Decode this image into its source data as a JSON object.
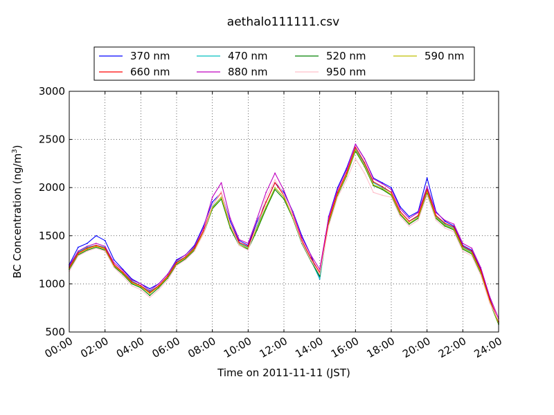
{
  "chart_data": {
    "type": "line",
    "title": "aethalo111111.csv",
    "xlabel": "Time on 2011-11-11 (JST)",
    "ylabel": "BC Concentration (ng/m",
    "ylabel_sup": "3",
    "ylabel_end": ")",
    "xlim": [
      "00:00",
      "24:00"
    ],
    "ylim": [
      500,
      3000
    ],
    "x_ticks": [
      "00:00",
      "02:00",
      "04:00",
      "06:00",
      "08:00",
      "10:00",
      "12:00",
      "14:00",
      "16:00",
      "18:00",
      "20:00",
      "22:00",
      "24:00"
    ],
    "y_ticks": [
      "500",
      "1000",
      "1500",
      "2000",
      "2500",
      "3000"
    ],
    "grid": true,
    "legend": "top (above plot), 4 columns",
    "x": [
      "00:00",
      "00:30",
      "01:00",
      "01:30",
      "02:00",
      "02:30",
      "03:00",
      "03:30",
      "04:00",
      "04:30",
      "05:00",
      "05:30",
      "06:00",
      "06:30",
      "07:00",
      "07:30",
      "08:00",
      "08:30",
      "09:00",
      "09:30",
      "10:00",
      "10:30",
      "11:00",
      "11:30",
      "12:00",
      "12:30",
      "13:00",
      "13:30",
      "14:00",
      "14:30",
      "15:00",
      "15:30",
      "16:00",
      "16:30",
      "17:00",
      "17:30",
      "18:00",
      "18:30",
      "19:00",
      "19:30",
      "20:00",
      "20:30",
      "21:00",
      "21:30",
      "22:00",
      "22:30",
      "23:00",
      "23:30",
      "24:00"
    ],
    "series": [
      {
        "name": "370 nm",
        "color": "#0000ff",
        "values": [
          1200,
          1380,
          1420,
          1500,
          1450,
          1250,
          1150,
          1050,
          1000,
          950,
          1000,
          1100,
          1250,
          1300,
          1400,
          1600,
          1850,
          1950,
          1650,
          1450,
          1400,
          1650,
          1850,
          2050,
          1950,
          1750,
          1500,
          1300,
          1050,
          1700,
          2000,
          2200,
          2450,
          2300,
          2100,
          2050,
          2000,
          1800,
          1700,
          1750,
          2100,
          1750,
          1650,
          1600,
          1400,
          1350,
          1150,
          850,
          600
        ]
      },
      {
        "name": "470 nm",
        "color": "#00bfbf",
        "values": [
          1180,
          1330,
          1380,
          1400,
          1380,
          1200,
          1120,
          1030,
          980,
          920,
          980,
          1080,
          1230,
          1280,
          1380,
          1550,
          1800,
          1900,
          1600,
          1420,
          1380,
          1600,
          1800,
          2000,
          1900,
          1700,
          1450,
          1250,
          1050,
          1650,
          1950,
          2150,
          2400,
          2250,
          2050,
          2000,
          1950,
          1750,
          1650,
          1700,
          2000,
          1700,
          1620,
          1580,
          1380,
          1330,
          1130,
          830,
          590
        ]
      },
      {
        "name": "520 nm",
        "color": "#008000",
        "values": [
          1150,
          1300,
          1350,
          1380,
          1350,
          1180,
          1100,
          1000,
          960,
          880,
          960,
          1060,
          1200,
          1260,
          1350,
          1520,
          1780,
          1880,
          1580,
          1400,
          1360,
          1560,
          1780,
          1980,
          1880,
          1680,
          1420,
          1240,
          1080,
          1620,
          1920,
          2120,
          2380,
          2220,
          2020,
          1980,
          1920,
          1720,
          1620,
          1680,
          1950,
          1680,
          1600,
          1560,
          1360,
          1310,
          1110,
          810,
          580
        ]
      },
      {
        "name": "590 nm",
        "color": "#bfbf00",
        "values": [
          1160,
          1310,
          1360,
          1390,
          1360,
          1190,
          1110,
          1010,
          970,
          900,
          970,
          1070,
          1210,
          1270,
          1360,
          1530,
          1790,
          1900,
          1600,
          1410,
          1370,
          1580,
          1800,
          2000,
          1900,
          1690,
          1430,
          1250,
          1100,
          1640,
          1930,
          2130,
          2390,
          2230,
          2030,
          1990,
          1930,
          1730,
          1630,
          1690,
          1960,
          1690,
          1610,
          1570,
          1370,
          1320,
          1120,
          820,
          590
        ]
      },
      {
        "name": "660 nm",
        "color": "#ff0000",
        "values": [
          1170,
          1320,
          1370,
          1400,
          1370,
          1200,
          1120,
          1020,
          980,
          910,
          980,
          1080,
          1220,
          1280,
          1370,
          1550,
          1820,
          1950,
          1620,
          1430,
          1390,
          1620,
          1850,
          2050,
          1920,
          1710,
          1450,
          1270,
          1120,
          1660,
          1950,
          2150,
          2420,
          2260,
          2060,
          2010,
          1950,
          1750,
          1650,
          1710,
          1980,
          1710,
          1630,
          1590,
          1390,
          1340,
          1140,
          840,
          610
        ]
      },
      {
        "name": "880 nm",
        "color": "#bf00bf",
        "values": [
          1190,
          1340,
          1390,
          1420,
          1390,
          1220,
          1140,
          1040,
          1000,
          930,
          1000,
          1100,
          1240,
          1300,
          1390,
          1580,
          1900,
          2050,
          1680,
          1460,
          1420,
          1680,
          1950,
          2150,
          1970,
          1740,
          1480,
          1300,
          1150,
          1690,
          1980,
          2180,
          2450,
          2300,
          2090,
          2040,
          1980,
          1780,
          1680,
          1740,
          2010,
          1740,
          1660,
          1620,
          1420,
          1370,
          1170,
          870,
          640
        ]
      },
      {
        "name": "950 nm",
        "color": "#ffc0cb",
        "values": [
          1130,
          1290,
          1340,
          1370,
          1340,
          1170,
          1080,
          980,
          940,
          860,
          940,
          1040,
          1190,
          1250,
          1340,
          1520,
          1820,
          1960,
          1620,
          1400,
          1350,
          1620,
          1900,
          2080,
          1930,
          1700,
          1430,
          1250,
          1100,
          1600,
          1900,
          2080,
          2300,
          2150,
          1950,
          1920,
          1900,
          1700,
          1600,
          1660,
          1920,
          1660,
          1580,
          1540,
          1340,
          1290,
          1090,
          800,
          620
        ]
      }
    ]
  }
}
